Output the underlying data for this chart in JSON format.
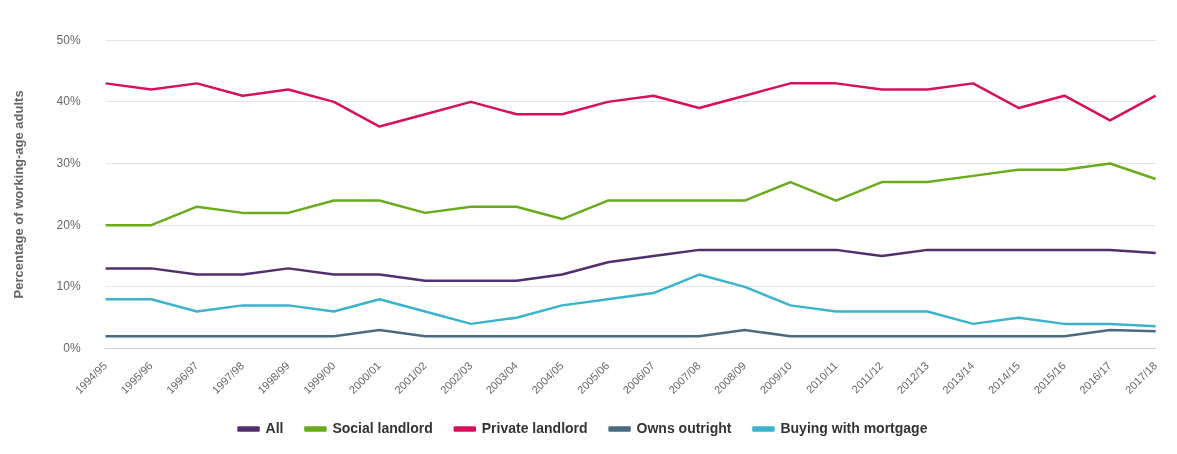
{
  "chart_data": {
    "type": "line",
    "ylabel": "Percentage of working-age adults",
    "categories": [
      "1994/95",
      "1995/96",
      "1996/97",
      "1997/98",
      "1998/99",
      "1999/00",
      "2000/01",
      "2001/02",
      "2002/03",
      "2003/04",
      "2004/05",
      "2005/06",
      "2006/07",
      "2007/08",
      "2008/09",
      "2009/10",
      "2010/11",
      "2011/12",
      "2012/13",
      "2013/14",
      "2014/15",
      "2015/16",
      "2016/17",
      "2017/18"
    ],
    "series": [
      {
        "name": "All",
        "color": "#522e6e",
        "values": [
          13,
          13,
          12,
          12,
          13,
          12,
          12,
          11,
          11,
          11,
          12,
          14,
          15,
          16,
          16,
          16,
          16,
          15,
          16,
          16,
          16,
          16,
          16,
          15.5
        ]
      },
      {
        "name": "Social landlord",
        "color": "#6aab1c",
        "values": [
          20,
          20,
          23,
          22,
          22,
          24,
          24,
          22,
          23,
          23,
          21,
          24,
          24,
          24,
          24,
          27,
          24,
          27,
          27,
          28,
          29,
          29,
          30,
          27.5
        ]
      },
      {
        "name": "Private landlord",
        "color": "#d6105b",
        "values": [
          43,
          42,
          43,
          41,
          42,
          40,
          36,
          38,
          40,
          38,
          38,
          40,
          41,
          39,
          41,
          43,
          43,
          42,
          42,
          43,
          39,
          41,
          37,
          41
        ]
      },
      {
        "name": "Owns outright",
        "color": "#4a6b80",
        "values": [
          2,
          2,
          2,
          2,
          2,
          2,
          3,
          2,
          2,
          2,
          2,
          2,
          2,
          2,
          3,
          2,
          2,
          2,
          2,
          2,
          2,
          2,
          3,
          2.8
        ]
      },
      {
        "name": "Buying with mortgage",
        "color": "#3bb3cc",
        "values": [
          8,
          8,
          6,
          7,
          7,
          6,
          8,
          6,
          4,
          5,
          7,
          8,
          9,
          12,
          10,
          7,
          6,
          6,
          6,
          4,
          5,
          4,
          4,
          3.6
        ]
      }
    ],
    "ylim": [
      0,
      50
    ],
    "yticks": [
      {
        "value": 0,
        "label": "0%"
      },
      {
        "value": 10,
        "label": "10%"
      },
      {
        "value": 20,
        "label": "20%"
      },
      {
        "value": 30,
        "label": "30%"
      },
      {
        "value": 40,
        "label": "40%"
      },
      {
        "value": 50,
        "label": "50%"
      }
    ],
    "grid": "y",
    "legend": "bottom",
    "marker": "none",
    "line_style": "solid"
  }
}
